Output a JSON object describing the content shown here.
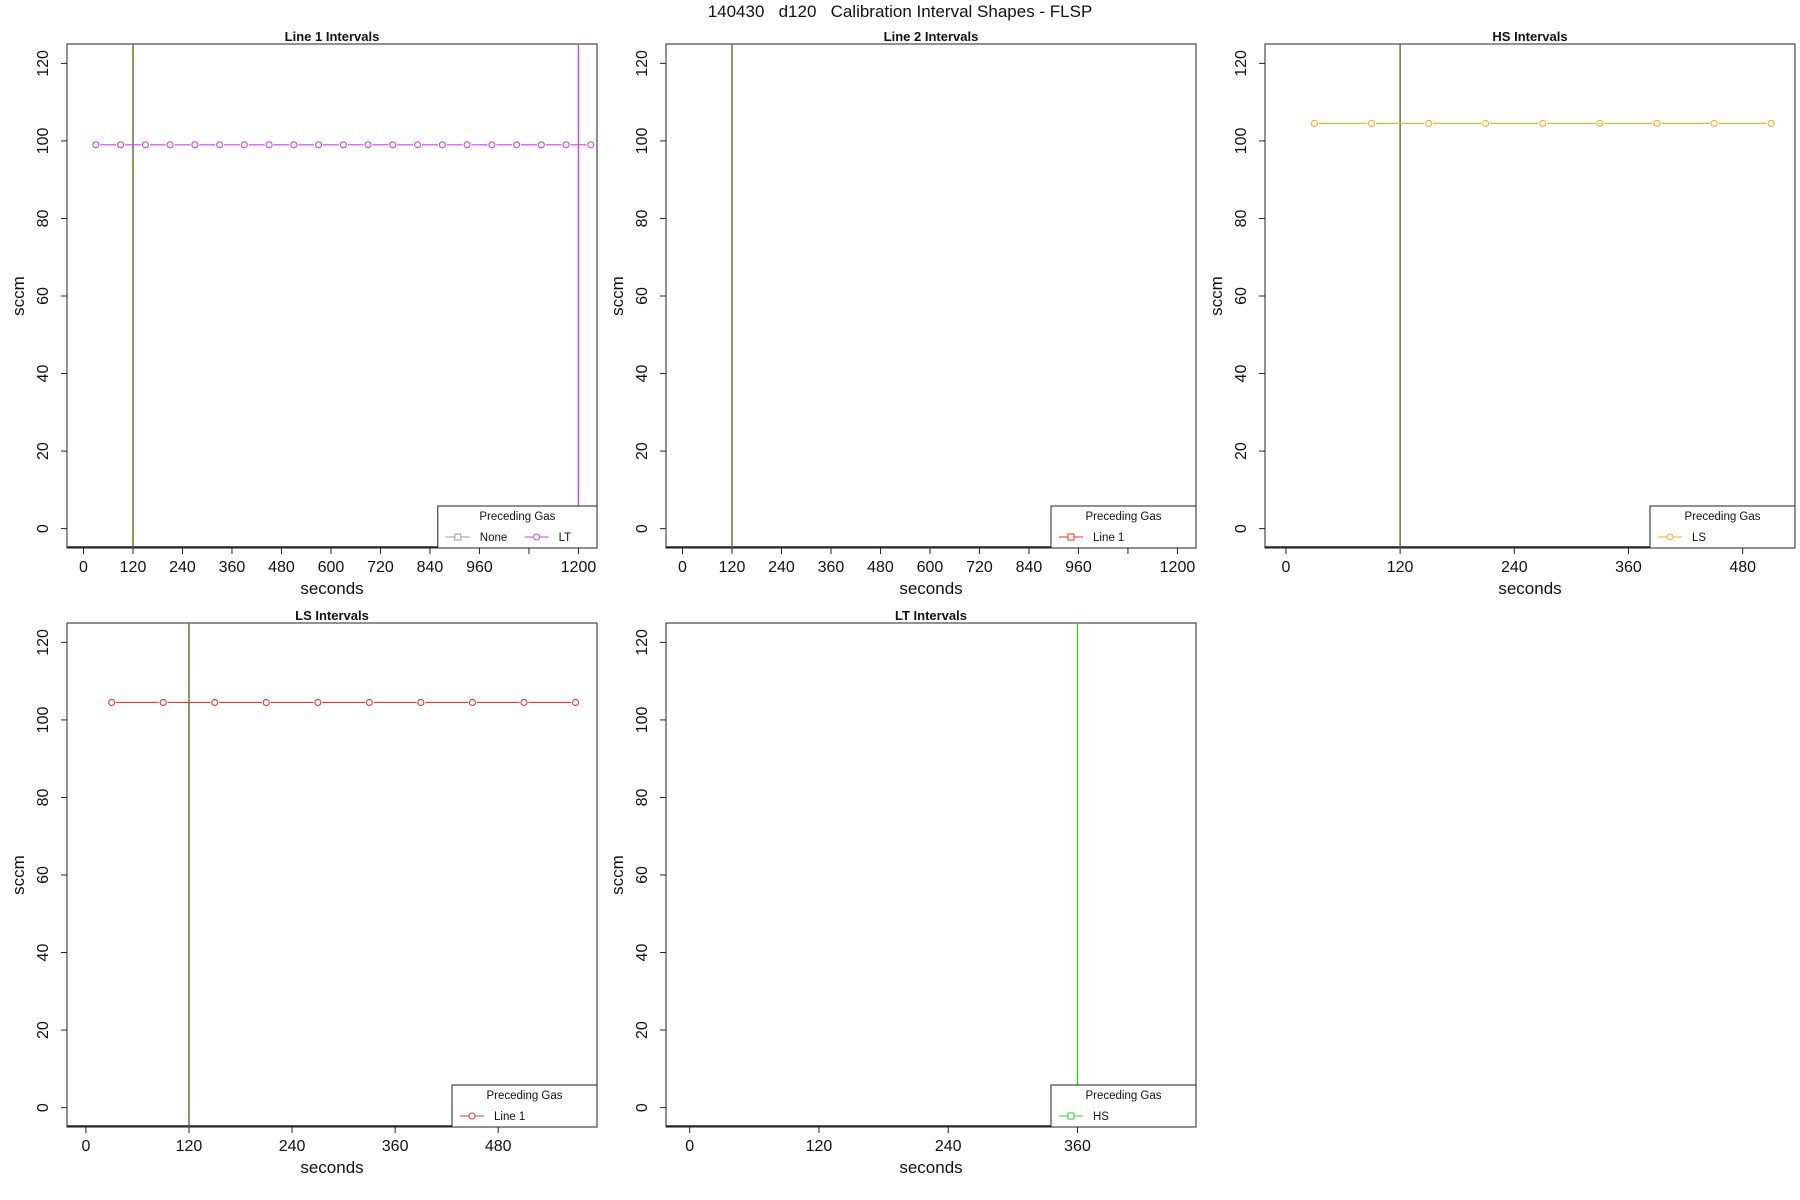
{
  "page": {
    "title": "140430   d120   Calibration Interval Shapes - FLSP"
  },
  "chart_data": [
    {
      "type": "line",
      "title": "Line 1 Intervals",
      "xlabel": "seconds",
      "ylabel": "sccm",
      "xlim": [
        -40,
        1245
      ],
      "ylim": [
        -5,
        125
      ],
      "xticks": [
        0,
        120,
        240,
        360,
        480,
        600,
        720,
        840,
        960,
        1080,
        1200
      ],
      "xtick_labels": [
        "0",
        "120",
        "240",
        "360",
        "480",
        "600",
        "720",
        "840",
        "960",
        "",
        "1200"
      ],
      "yticks": [
        0,
        20,
        40,
        60,
        80,
        100,
        120
      ],
      "vlines": [
        {
          "x": 120,
          "color": "#556b2f"
        },
        {
          "x": 1200,
          "color": "#cc44ee"
        }
      ],
      "series": [
        {
          "name": "None",
          "color": "#999999",
          "marker": "square",
          "x": [],
          "y": []
        },
        {
          "name": "LT",
          "color": "#cc44ee",
          "marker": "circle",
          "x": [
            30,
            90,
            150,
            210,
            270,
            330,
            390,
            450,
            510,
            570,
            630,
            690,
            750,
            810,
            870,
            930,
            990,
            1050,
            1110,
            1170,
            1230
          ],
          "y": [
            99,
            99,
            99,
            99,
            99,
            99,
            99,
            99,
            99,
            99,
            99,
            99,
            99,
            99,
            99,
            99,
            99,
            99,
            99,
            99,
            99
          ]
        }
      ],
      "legend": {
        "title": "Preceding Gas",
        "position": "bottom-right"
      }
    },
    {
      "type": "line",
      "title": "Line 2 Intervals",
      "xlabel": "seconds",
      "ylabel": "sccm",
      "xlim": [
        -40,
        1245
      ],
      "ylim": [
        -5,
        125
      ],
      "xticks": [
        0,
        120,
        240,
        360,
        480,
        600,
        720,
        840,
        960,
        1080,
        1200
      ],
      "xtick_labels": [
        "0",
        "120",
        "240",
        "360",
        "480",
        "600",
        "720",
        "840",
        "960",
        "",
        "1200"
      ],
      "yticks": [
        0,
        20,
        40,
        60,
        80,
        100,
        120
      ],
      "vlines": [
        {
          "x": 120,
          "color": "#556b2f"
        }
      ],
      "series": [
        {
          "name": "Line 1",
          "color": "#ee3333",
          "marker": "square",
          "x": [],
          "y": []
        }
      ],
      "legend": {
        "title": "Preceding Gas",
        "position": "bottom-right"
      }
    },
    {
      "type": "line",
      "title": "HS Intervals",
      "xlabel": "seconds",
      "ylabel": "sccm",
      "xlim": [
        -22,
        535
      ],
      "ylim": [
        -5,
        125
      ],
      "xticks": [
        0,
        120,
        240,
        360,
        480
      ],
      "xtick_labels": [
        "0",
        "120",
        "240",
        "360",
        "480"
      ],
      "yticks": [
        0,
        20,
        40,
        60,
        80,
        100,
        120
      ],
      "vlines": [
        {
          "x": 120,
          "color": "#556b2f"
        }
      ],
      "series": [
        {
          "name": "LS",
          "color": "#ffaa22",
          "marker": "circle",
          "x": [
            30,
            90,
            150,
            210,
            270,
            330,
            390,
            450,
            510
          ],
          "y": [
            104.5,
            104.5,
            104.5,
            104.5,
            104.5,
            104.5,
            104.5,
            104.5,
            104.5
          ]
        }
      ],
      "legend": {
        "title": "Preceding Gas",
        "position": "bottom-right"
      }
    },
    {
      "type": "line",
      "title": "LS Intervals",
      "xlabel": "seconds",
      "ylabel": "sccm",
      "xlim": [
        -22,
        595
      ],
      "ylim": [
        -5,
        125
      ],
      "xticks": [
        0,
        120,
        240,
        360,
        480
      ],
      "xtick_labels": [
        "0",
        "120",
        "240",
        "360",
        "480"
      ],
      "yticks": [
        0,
        20,
        40,
        60,
        80,
        100,
        120
      ],
      "vlines": [
        {
          "x": 120,
          "color": "#556b2f"
        }
      ],
      "series": [
        {
          "name": "Line 1",
          "color": "#ee3333",
          "marker": "circle",
          "x": [
            30,
            90,
            150,
            210,
            270,
            330,
            390,
            450,
            510,
            570
          ],
          "y": [
            104.5,
            104.5,
            104.5,
            104.5,
            104.5,
            104.5,
            104.5,
            104.5,
            104.5,
            104.5
          ]
        }
      ],
      "legend": {
        "title": "Preceding Gas",
        "position": "bottom-right"
      }
    },
    {
      "type": "line",
      "title": "LT Intervals",
      "xlabel": "seconds",
      "ylabel": "sccm",
      "xlim": [
        -22,
        470
      ],
      "ylim": [
        -5,
        125
      ],
      "xticks": [
        0,
        120,
        240,
        360
      ],
      "xtick_labels": [
        "0",
        "120",
        "240",
        "360"
      ],
      "yticks": [
        0,
        20,
        40,
        60,
        80,
        100,
        120
      ],
      "vlines": [
        {
          "x": 360,
          "color": "#33cc33"
        }
      ],
      "series": [
        {
          "name": "HS",
          "color": "#33cc33",
          "marker": "square",
          "x": [],
          "y": []
        }
      ],
      "legend": {
        "title": "Preceding Gas",
        "position": "bottom-right"
      }
    }
  ]
}
